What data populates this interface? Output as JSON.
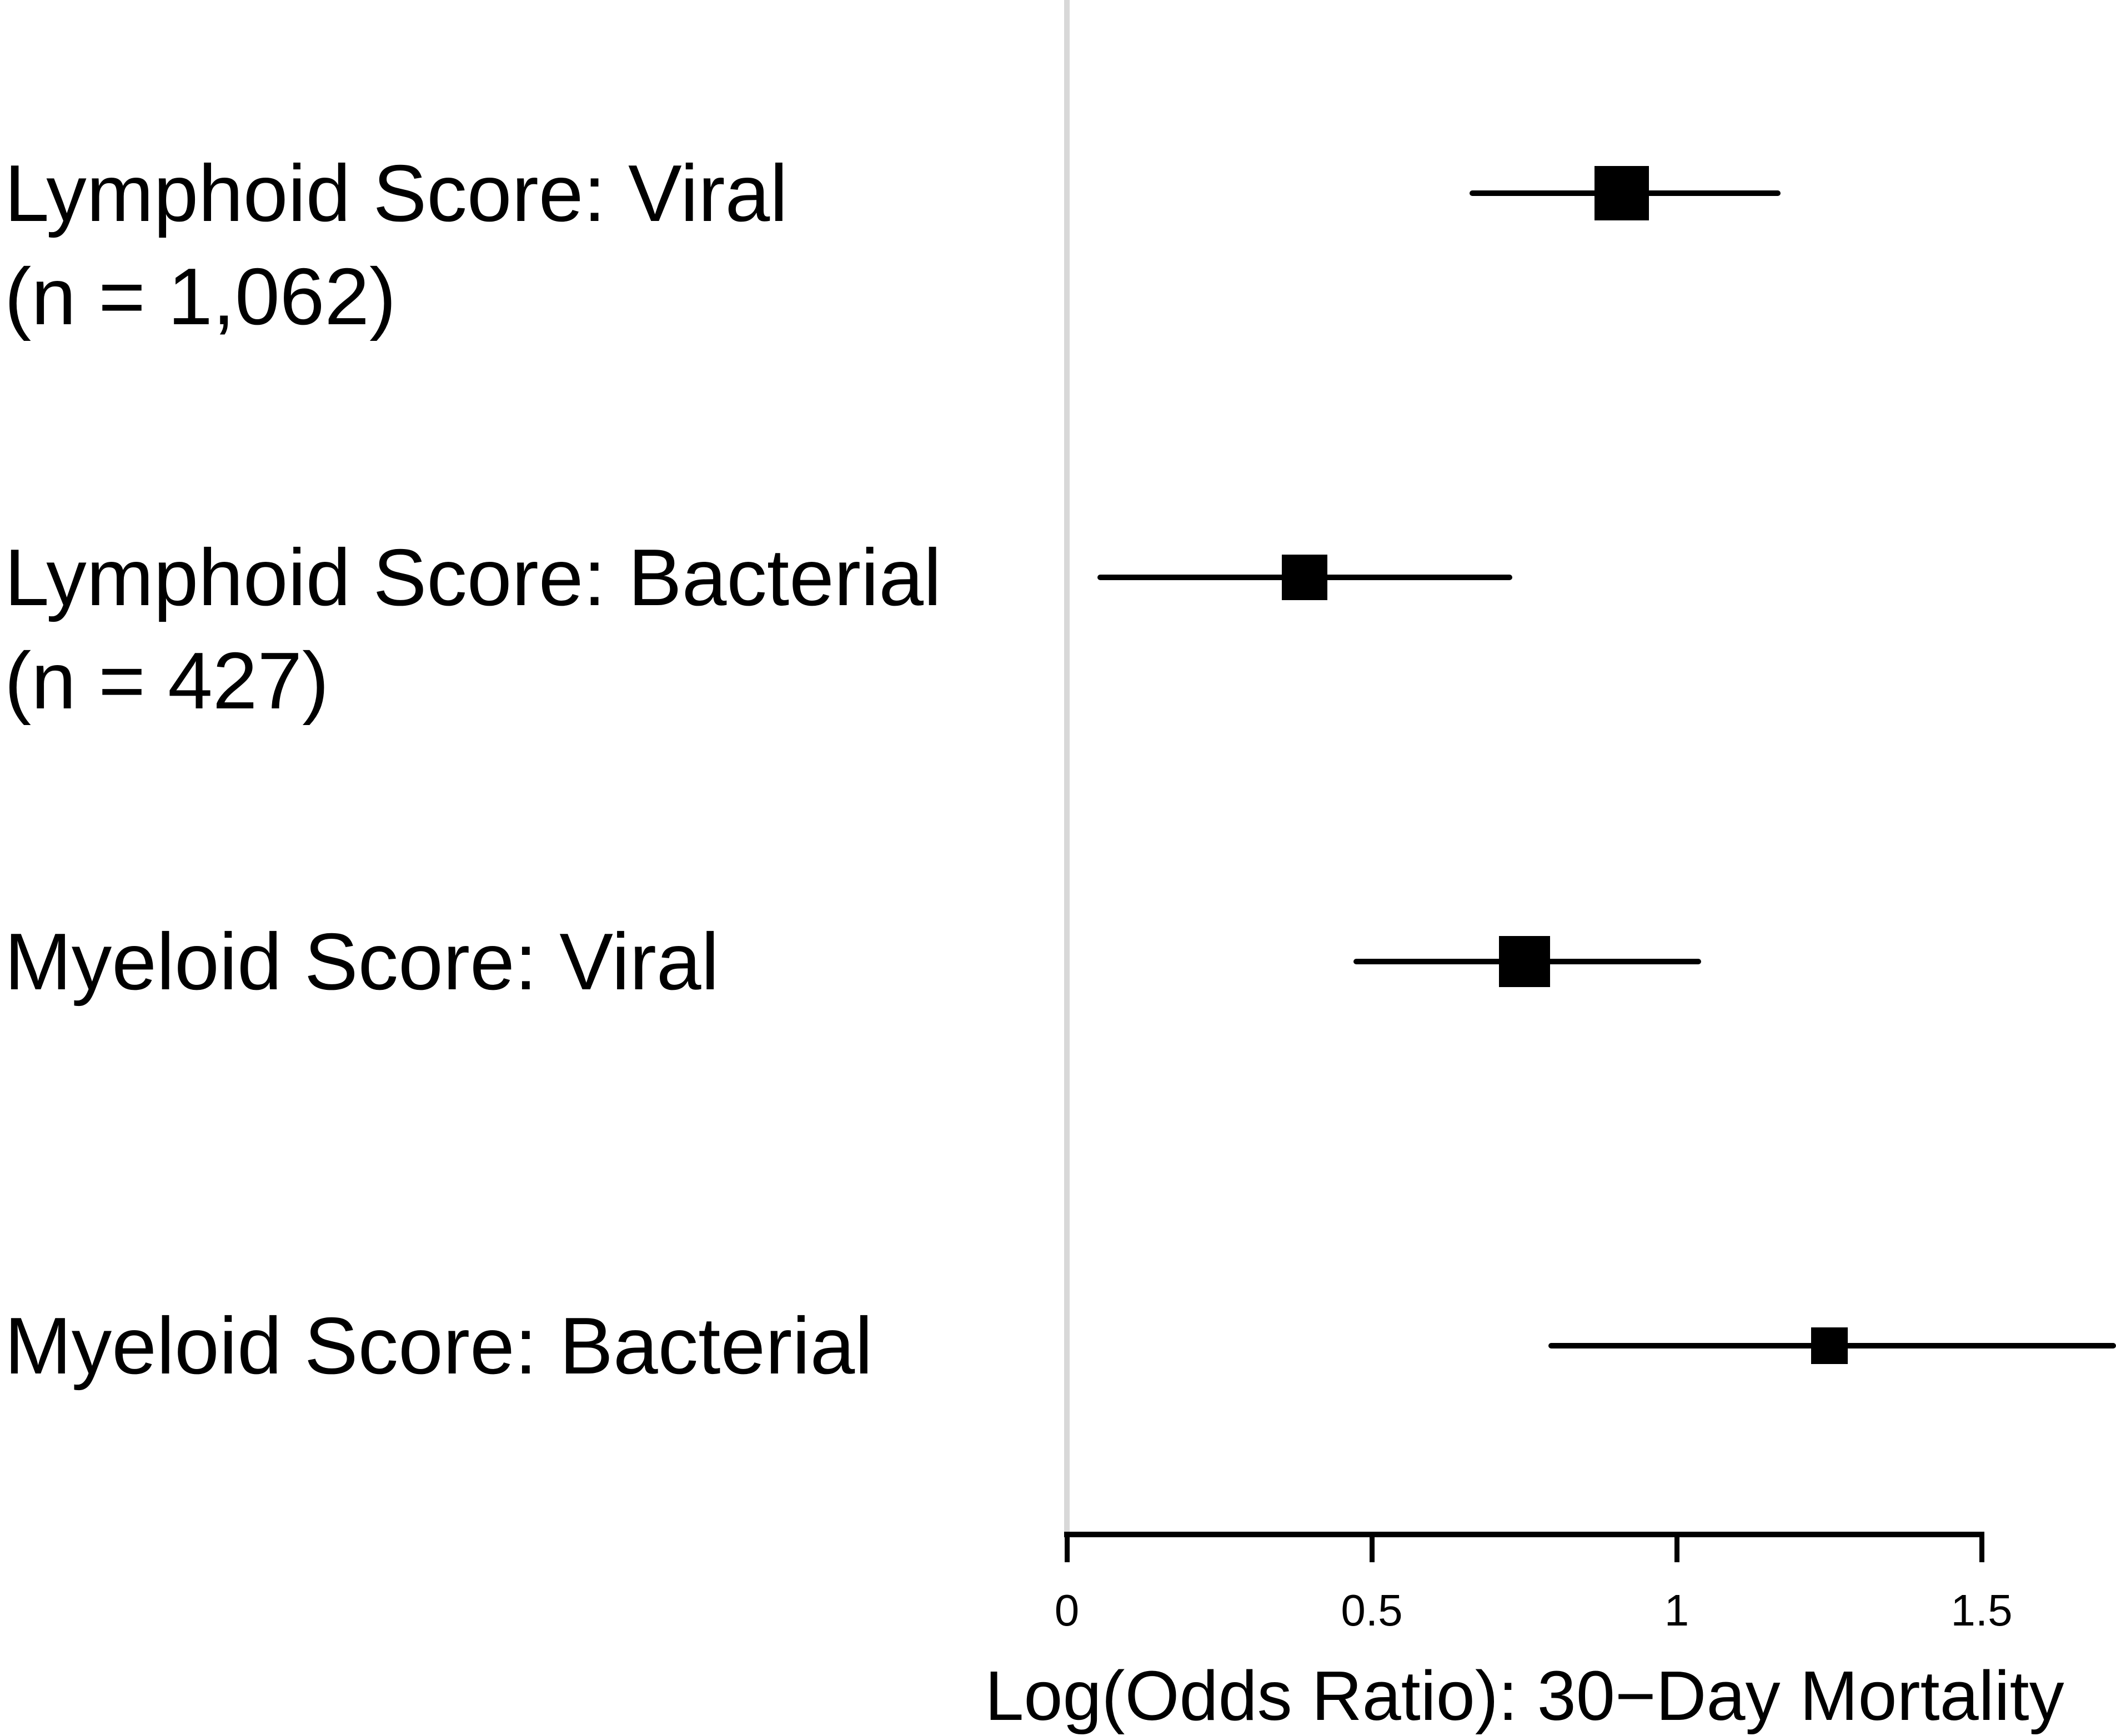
{
  "figure": {
    "background": "#ffffff",
    "text_color": "#000000",
    "reference_line_color": "#d8d8d8",
    "marker_color": "#000000"
  },
  "chart_data": {
    "type": "scatter",
    "subtype": "forest-plot",
    "title": "",
    "xlabel": "Log(Odds Ratio): 30−Day Mortality",
    "ylabel": "",
    "xlim": [
      0,
      1.72
    ],
    "x_ticks": [
      0,
      0.5,
      1,
      1.5
    ],
    "x_tick_labels": [
      "0",
      "0.5",
      "1",
      "1.5"
    ],
    "grid": false,
    "legend": "none",
    "reference_line_x": 0,
    "rows": [
      {
        "label_line1": "Lymphoid Score: Viral",
        "label_line2": "(n = 1,062)",
        "n": 1062,
        "estimate": 0.91,
        "ci_low": 0.66,
        "ci_high": 1.17,
        "ci_high_clipped": false,
        "marker_size_px": 98
      },
      {
        "label_line1": "Lymphoid Score: Bacterial",
        "label_line2": "(n = 427)",
        "n": 427,
        "estimate": 0.39,
        "ci_low": 0.05,
        "ci_high": 0.73,
        "ci_high_clipped": false,
        "marker_size_px": 82
      },
      {
        "label_line1": "Myeloid Score: Viral",
        "label_line2": "",
        "estimate": 0.75,
        "ci_low": 0.47,
        "ci_high": 1.04,
        "ci_high_clipped": false,
        "marker_size_px": 92
      },
      {
        "label_line1": "Myeloid Score: Bacterial",
        "label_line2": "",
        "estimate": 1.25,
        "ci_low": 0.79,
        "ci_high": 1.72,
        "ci_high_clipped": true,
        "marker_size_px": 66
      }
    ]
  }
}
